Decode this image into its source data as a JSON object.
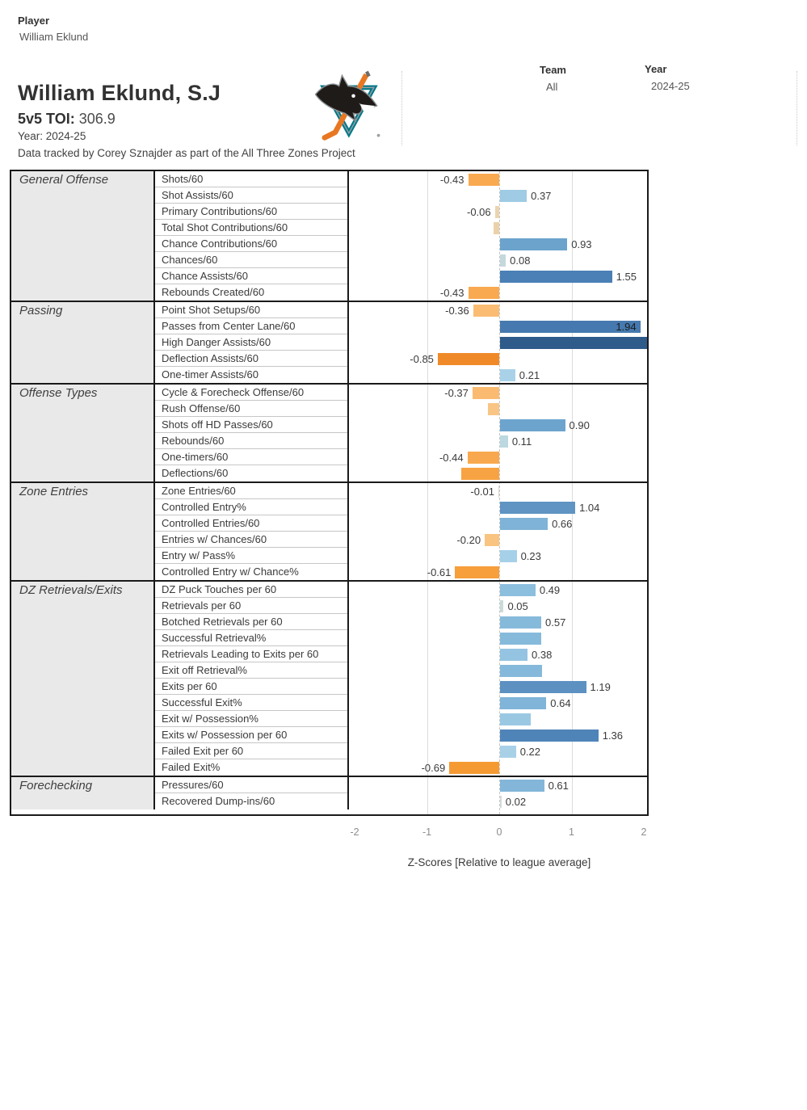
{
  "filters": {
    "player_label": "Player",
    "player_value": "William Eklund",
    "team_label": "Team",
    "team_value": "All",
    "year_label": "Year",
    "year_value": "2024-25"
  },
  "header": {
    "title": "William Eklund, S.J",
    "toi_label": "5v5 TOI:",
    "toi_value": "306.9",
    "year_line": "Year: 2024-25",
    "credit_line": "Data tracked by Corey Sznajder as part of the All Three Zones Project",
    "team_logo": "san-jose-sharks-logo"
  },
  "colors": {
    "positive_strong": "#2E5B8A",
    "negative_strong": "#F08A28",
    "category_bg": "#e9e9e9",
    "border": "#1a1a1a",
    "logo_teal": "#007889",
    "logo_orange": "#e87722"
  },
  "chart_data": {
    "type": "bar",
    "orientation": "horizontal",
    "xlabel": "Z-Scores [Relative to league average]",
    "xlim": [
      -2.1,
      2.05
    ],
    "x_ticks": [
      "-2",
      "-1",
      "0",
      "1",
      "2"
    ],
    "zero_line": "dashed",
    "gridlines_at": [
      -1,
      1
    ],
    "legend": "none",
    "sections": [
      {
        "name": "General Offense",
        "rows": [
          {
            "metric": "Shots/60",
            "value": -0.43,
            "label": "-0.43",
            "color": "#F9A950"
          },
          {
            "metric": "Shot Assists/60",
            "value": 0.37,
            "label": "0.37",
            "color": "#9FCBE4"
          },
          {
            "metric": "Primary Contributions/60",
            "value": -0.06,
            "label": "-0.06",
            "color": "#EBD5AF"
          },
          {
            "metric": "Total Shot Contributions/60",
            "value": -0.08,
            "label": "",
            "color": "#EAD2A8"
          },
          {
            "metric": "Chance Contributions/60",
            "value": 0.93,
            "label": "0.93",
            "color": "#6BA3CD"
          },
          {
            "metric": "Chances/60",
            "value": 0.08,
            "label": "0.08",
            "color": "#C5D8DB"
          },
          {
            "metric": "Chance Assists/60",
            "value": 1.55,
            "label": "1.55",
            "color": "#4A80B5"
          },
          {
            "metric": "Rebounds Created/60",
            "value": -0.43,
            "label": "-0.43",
            "color": "#F9A950"
          }
        ]
      },
      {
        "name": "Passing",
        "rows": [
          {
            "metric": "Point Shot Setups/60",
            "value": -0.36,
            "label": "-0.36",
            "color": "#FABC72"
          },
          {
            "metric": "Passes from Center Lane/60",
            "value": 1.94,
            "label": "1.94",
            "color": "#4679AF",
            "label_inside": true
          },
          {
            "metric": "High Danger Assists/60",
            "value": 2.1,
            "label": "",
            "color": "#2E5B8A"
          },
          {
            "metric": "Deflection Assists/60",
            "value": -0.85,
            "label": "-0.85",
            "color": "#F08A28"
          },
          {
            "metric": "One-timer Assists/60",
            "value": 0.21,
            "label": "0.21",
            "color": "#A9D2E9"
          }
        ]
      },
      {
        "name": "Offense Types",
        "rows": [
          {
            "metric": "Cycle & Forecheck Offense/60",
            "value": -0.37,
            "label": "-0.37",
            "color": "#FABB70"
          },
          {
            "metric": "Rush Offense/60",
            "value": -0.16,
            "label": "",
            "color": "#F9C584"
          },
          {
            "metric": "Shots off HD Passes/60",
            "value": 0.9,
            "label": "0.90",
            "color": "#6CA4CE"
          },
          {
            "metric": "Rebounds/60",
            "value": 0.11,
            "label": "0.11",
            "color": "#BCD8E0"
          },
          {
            "metric": "One-timers/60",
            "value": -0.44,
            "label": "-0.44",
            "color": "#F8A94F"
          },
          {
            "metric": "Deflections/60",
            "value": -0.52,
            "label": "",
            "color": "#F8A343"
          }
        ]
      },
      {
        "name": "Zone Entries",
        "rows": [
          {
            "metric": "Zone Entries/60",
            "value": -0.01,
            "label": "-0.01",
            "color": "#DCD9CE"
          },
          {
            "metric": "Controlled Entry%",
            "value": 1.04,
            "label": "1.04",
            "color": "#5F94C3"
          },
          {
            "metric": "Controlled Entries/60",
            "value": 0.66,
            "label": "0.66",
            "color": "#7FB3D7"
          },
          {
            "metric": "Entries w/ Chances/60",
            "value": -0.2,
            "label": "-0.20",
            "color": "#F9C380"
          },
          {
            "metric": "Entry w/ Pass%",
            "value": 0.23,
            "label": "0.23",
            "color": "#A6D0E7"
          },
          {
            "metric": "Controlled Entry w/ Chance%",
            "value": -0.61,
            "label": "-0.61",
            "color": "#F69F3B"
          }
        ]
      },
      {
        "name": "DZ Retrievals/Exits",
        "rows": [
          {
            "metric": "DZ Puck Touches per 60",
            "value": 0.49,
            "label": "0.49",
            "color": "#8CBEDE"
          },
          {
            "metric": "Retrievals per 60",
            "value": 0.05,
            "label": "0.05",
            "color": "#CBDBD9"
          },
          {
            "metric": "Botched Retrievals per 60",
            "value": 0.57,
            "label": "0.57",
            "color": "#86BADB"
          },
          {
            "metric": "Successful Retrieval%",
            "value": 0.57,
            "label": "",
            "color": "#86BADB"
          },
          {
            "metric": "Retrievals Leading to Exits per 60",
            "value": 0.38,
            "label": "0.38",
            "color": "#94C4E1"
          },
          {
            "metric": "Exit off Retrieval%",
            "value": 0.58,
            "label": "",
            "color": "#85B9DB"
          },
          {
            "metric": "Exits per 60",
            "value": 1.19,
            "label": "1.19",
            "color": "#5C91C1"
          },
          {
            "metric": "Successful Exit%",
            "value": 0.64,
            "label": "0.64",
            "color": "#80B4D8"
          },
          {
            "metric": "Exit w/ Possession%",
            "value": 0.42,
            "label": "",
            "color": "#9AC8E3"
          },
          {
            "metric": "Exits w/ Possession per 60",
            "value": 1.36,
            "label": "1.36",
            "color": "#4F84B8"
          },
          {
            "metric": "Failed Exit per 60",
            "value": 0.22,
            "label": "0.22",
            "color": "#A8D1E8"
          },
          {
            "metric": "Failed Exit%",
            "value": -0.69,
            "label": "-0.69",
            "color": "#F59A33"
          }
        ]
      },
      {
        "name": "Forechecking",
        "rows": [
          {
            "metric": "Pressures/60",
            "value": 0.61,
            "label": "0.61",
            "color": "#83B6D9"
          },
          {
            "metric": "Recovered Dump-ins/60",
            "value": 0.02,
            "label": "0.02",
            "color": "#D5DCD6"
          }
        ]
      }
    ]
  }
}
